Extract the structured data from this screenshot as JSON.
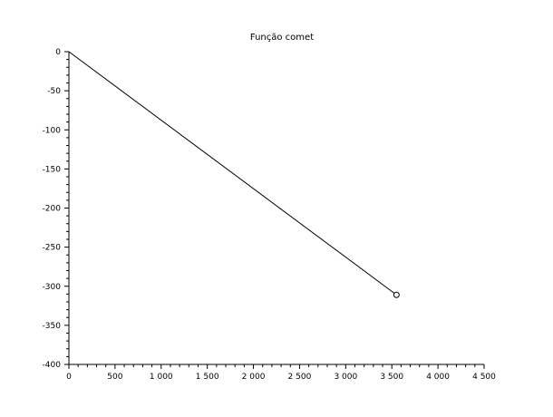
{
  "chart_data": {
    "type": "line",
    "title": "Função comet",
    "xlabel": "",
    "ylabel": "",
    "xlim": [
      0,
      4500
    ],
    "ylim": [
      -400,
      0
    ],
    "x_ticks": [
      0,
      500,
      1000,
      1500,
      2000,
      2500,
      3000,
      3500,
      4000,
      4500
    ],
    "x_tick_labels": [
      "0",
      "500",
      "1 000",
      "1 500",
      "2 000",
      "2 500",
      "3 000",
      "3 500",
      "4 000",
      "4 500"
    ],
    "y_ticks": [
      0,
      -50,
      -100,
      -150,
      -200,
      -250,
      -300,
      -350,
      -400
    ],
    "y_tick_labels": [
      "0",
      "-50",
      "-100",
      "-150",
      "-200",
      "-250",
      "-300",
      "-350",
      "-400"
    ],
    "grid": false,
    "series": [
      {
        "x": [
          0,
          3550
        ],
        "y": [
          0,
          -311
        ]
      }
    ],
    "marker_point": {
      "x": 3550,
      "y": -311
    },
    "colors": {
      "line": "#000000",
      "axes": "#000000",
      "background": "#ffffff"
    }
  }
}
